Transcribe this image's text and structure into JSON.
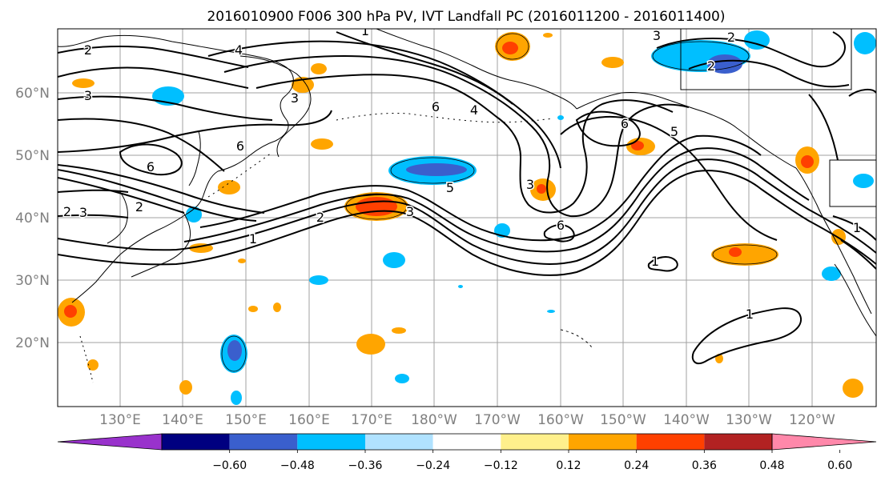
{
  "title": "2016010900 F006 300 hPa PV, IVT Landfall PC (2016011200 - 2016011400)",
  "lon_labels": [
    "130°E",
    "140°E",
    "150°E",
    "160°E",
    "170°E",
    "180°W",
    "170°W",
    "160°W",
    "150°W",
    "140°W",
    "130°W",
    "120°W"
  ],
  "lat_labels": [
    "60°N",
    "50°N",
    "40°N",
    "30°N",
    "20°N"
  ],
  "colorbar": {
    "tick_labels": [
      "−0.60",
      "−0.48",
      "−0.36",
      "−0.24",
      "−0.12",
      "0.12",
      "0.24",
      "0.36",
      "0.48",
      "0.60"
    ],
    "colors": [
      "#9932cc",
      "#000080",
      "#3a5fcd",
      "#00bfff",
      "#b0e2ff",
      "#ffffff",
      "#fff08c",
      "#ffa500",
      "#ff4000",
      "#b22222",
      "#ff88aa"
    ]
  },
  "contour_labels": [
    "2",
    "4",
    "1",
    "3",
    "6",
    "4",
    "6",
    "5",
    "3",
    "6",
    "1",
    "2",
    "2",
    "3",
    "6",
    "5",
    "3",
    "2",
    "3",
    "6",
    "1",
    "1",
    "2",
    "3",
    "1",
    "2"
  ],
  "colors": {
    "contour": "#000000",
    "coast": "#000000",
    "grid": "#a0a0a0"
  }
}
